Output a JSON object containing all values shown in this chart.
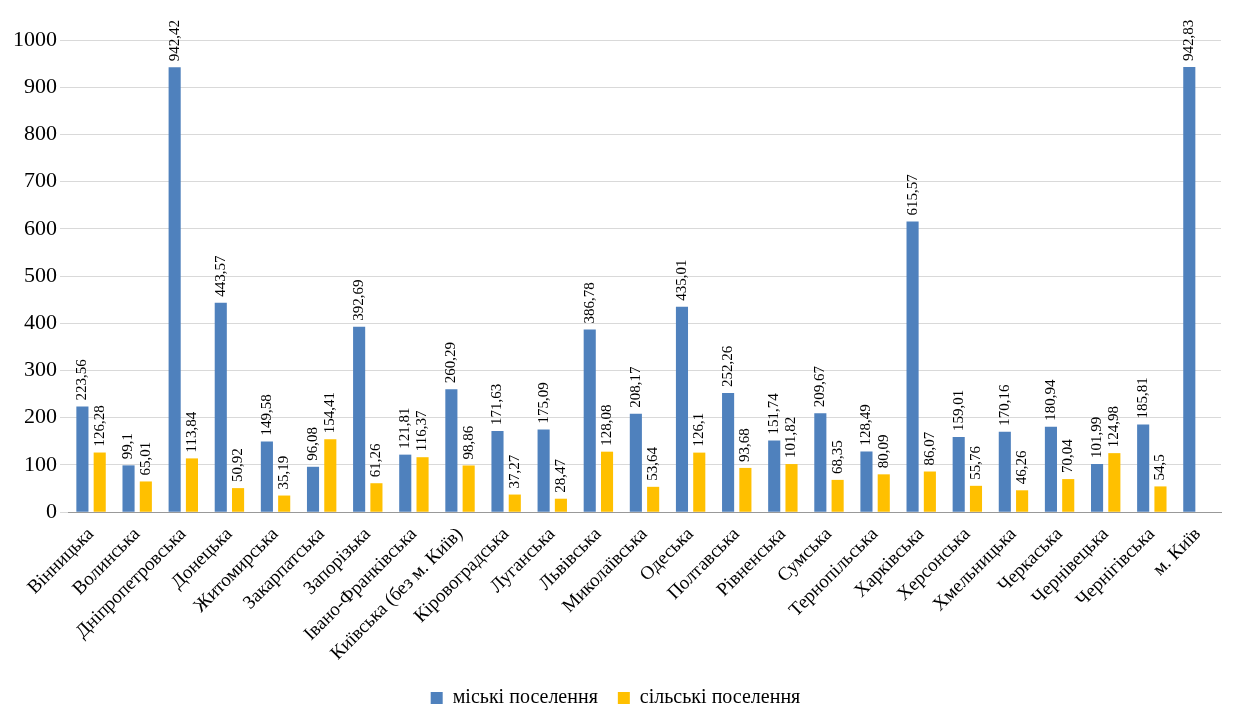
{
  "chart_data": {
    "type": "bar",
    "categories": [
      "Вінницька",
      "Волинська",
      "Дніпропетровська",
      "Донецька",
      "Житомирська",
      "Закарпатська",
      "Запорізька",
      "Івано-Франківська",
      "Київська (без м. Київ)",
      "Кіровоградська",
      "Луганська",
      "Львівська",
      "Миколаївська",
      "Одеська",
      "Полтавська",
      "Рівненська",
      "Сумська",
      "Тернопільська",
      "Харківська",
      "Херсонська",
      "Хмельницька",
      "Черкаська",
      "Чернівецька",
      "Чернігівська",
      "м. Київ"
    ],
    "series": [
      {
        "name": "міські поселення",
        "color": "#4f81bd",
        "values": [
          223.56,
          99.1,
          942.42,
          443.57,
          149.58,
          96.08,
          392.69,
          121.81,
          260.29,
          171.63,
          175.09,
          386.78,
          208.17,
          435.01,
          252.26,
          151.74,
          209.67,
          128.49,
          615.57,
          159.01,
          170.16,
          180.94,
          101.99,
          185.81,
          942.83
        ],
        "value_labels": [
          "223,56",
          "99,1",
          "942,42",
          "443,57",
          "149,58",
          "96,08",
          "392,69",
          "121,81",
          "260,29",
          "171,63",
          "175,09",
          "386,78",
          "208,17",
          "435,01",
          "252,26",
          "151,74",
          "209,67",
          "128,49",
          "615,57",
          "159,01",
          "170,16",
          "180,94",
          "101,99",
          "185,81",
          "942,83"
        ]
      },
      {
        "name": "сільські поселення",
        "color": "#ffc000",
        "values": [
          126.28,
          65.01,
          113.84,
          50.92,
          35.19,
          154.41,
          61.26,
          116.37,
          98.86,
          37.27,
          28.47,
          128.08,
          53.64,
          126.1,
          93.68,
          101.82,
          68.35,
          80.09,
          86.07,
          55.76,
          46.26,
          70.04,
          124.98,
          54.5,
          null
        ],
        "value_labels": [
          "126,28",
          "65,01",
          "113,84",
          "50,92",
          "35,19",
          "154,41",
          "61,26",
          "116,37",
          "98,86",
          "37,27",
          "28,47",
          "128,08",
          "53,64",
          "126,1",
          "93,68",
          "101,82",
          "68,35",
          "80,09",
          "86,07",
          "55,76",
          "46,26",
          "70,04",
          "124,98",
          "54,5",
          null
        ]
      }
    ],
    "ylim": [
      0,
      1000
    ],
    "yticks": [
      0,
      100,
      200,
      300,
      400,
      500,
      600,
      700,
      800,
      900,
      1000
    ],
    "grid": "y",
    "legend": "bottom"
  }
}
